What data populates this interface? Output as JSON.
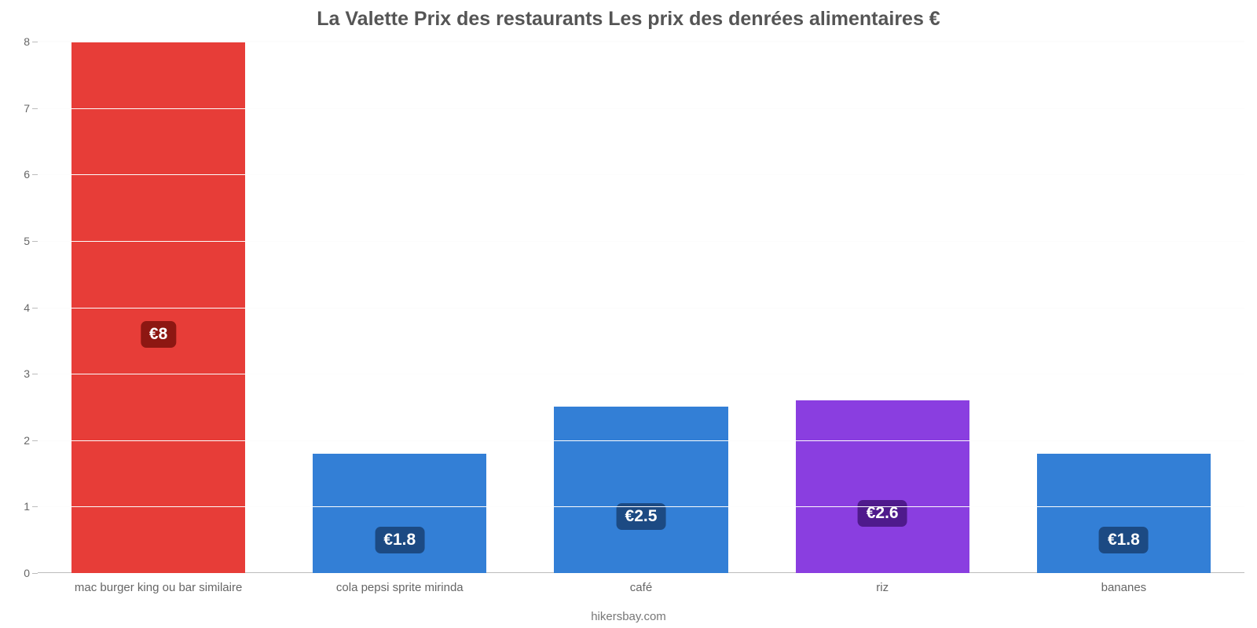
{
  "chart": {
    "type": "bar",
    "title": "La Valette Prix des restaurants Les prix des denrées alimentaires €",
    "title_color": "#555555",
    "title_fontsize": 25,
    "title_fontweight": 700,
    "footer": "hikersbay.com",
    "footer_color": "#777777",
    "footer_fontsize": 15,
    "background_color": "#ffffff",
    "grid_color": "#fcfcfc",
    "axis_line_color": "#bcbcbc",
    "tick_label_color": "#666666",
    "tick_fontsize": 14,
    "xlabel_color": "#666666",
    "xlabel_fontsize": 15,
    "y": {
      "min": 0,
      "max": 8,
      "ticks": [
        0,
        1,
        2,
        3,
        4,
        5,
        6,
        7,
        8
      ]
    },
    "bar_fill_ratio": 0.72,
    "value_prefix": "€",
    "value_badge_text_color": "#ffffff",
    "value_badge_fontsize": 21,
    "value_badge_radius": 7,
    "categories": [
      {
        "label": "mac burger king ou bar similaire",
        "value": 8,
        "display": "€8",
        "bar_color": "#e73d38",
        "badge_color": "#8d1712"
      },
      {
        "label": "cola pepsi sprite mirinda",
        "value": 1.8,
        "display": "€1.8",
        "bar_color": "#337fd6",
        "badge_color": "#1c4a83"
      },
      {
        "label": "café",
        "value": 2.5,
        "display": "€2.5",
        "bar_color": "#337fd6",
        "badge_color": "#1c4a83"
      },
      {
        "label": "riz",
        "value": 2.6,
        "display": "€2.6",
        "bar_color": "#8a3ee0",
        "badge_color": "#4f1a8c"
      },
      {
        "label": "bananes",
        "value": 1.8,
        "display": "€1.8",
        "bar_color": "#337fd6",
        "badge_color": "#1c4a83"
      }
    ]
  }
}
